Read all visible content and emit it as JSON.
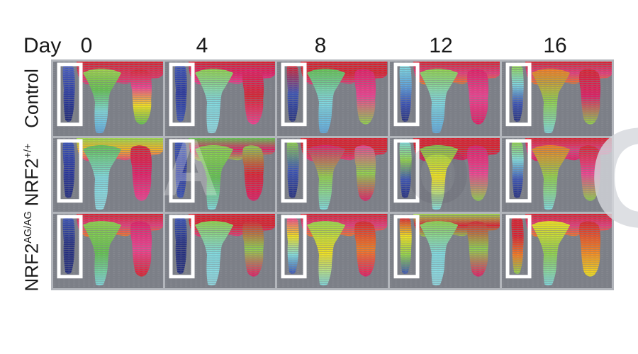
{
  "figure": {
    "type": "laser-doppler-perfusion-image-grid",
    "day_label": "Day",
    "days": [
      "0",
      "4",
      "8",
      "12",
      "16"
    ],
    "rows": [
      {
        "id": "control",
        "base": "Control",
        "sup": ""
      },
      {
        "id": "nrf2-wt",
        "base": "NRF2",
        "sup": "+/+"
      },
      {
        "id": "nrf2-agag",
        "base": "NRF2",
        "sup": "AG/AG"
      }
    ],
    "palette": {
      "panel_background": "#7c7f87",
      "grid_frame": "#b2b5bb",
      "box_outline": "#ffffff",
      "page_background": "#ffffff",
      "text": "#1a1a1a"
    },
    "panels": [
      {
        "row_id": "control",
        "row": "Control",
        "day": "0",
        "box_streak": [
          "#4a5fc0",
          "#2a3aa0",
          "#1b2575"
        ],
        "torso": [
          "#d8202e",
          "#e23a7a"
        ],
        "center_leg": [
          "#9fd04a",
          "#62c04f",
          "#7fd8dc",
          "#5fa8dc"
        ],
        "right_leg": [
          "#d8202e",
          "#ef3f8f",
          "#f0e01c",
          "#62c04f"
        ]
      },
      {
        "row_id": "control",
        "row": "Control",
        "day": "4",
        "box_streak": [
          "#3a52b4",
          "#27349b",
          "#3a52b4"
        ],
        "torso": [
          "#d8202e",
          "#e01a62",
          "#ef3f8f"
        ],
        "center_leg": [
          "#8fd04a",
          "#7fd8dc",
          "#8fd8e0"
        ],
        "right_leg": [
          "#e01a62",
          "#d8202e",
          "#ef3f8f"
        ]
      },
      {
        "row_id": "control",
        "row": "Control",
        "day": "8",
        "box_streak": [
          "#d8202e",
          "#3a52b4",
          "#232d7d"
        ],
        "torso": [
          "#d8202e",
          "#d8202e",
          "#e23a7a"
        ],
        "center_leg": [
          "#62c04f",
          "#7fd8dc",
          "#5fa8dc"
        ],
        "right_leg": [
          "#e01a62",
          "#ef3f8f",
          "#8fd04a"
        ]
      },
      {
        "row_id": "control",
        "row": "Control",
        "day": "12",
        "box_streak": [
          "#7fd8dc",
          "#5fa8dc",
          "#3a52b4",
          "#232d7d"
        ],
        "torso": [
          "#d8202e",
          "#e23a7a",
          "#f2791f"
        ],
        "center_leg": [
          "#8fd04a",
          "#7fd8dc",
          "#5fa8dc"
        ],
        "right_leg": [
          "#e01a62",
          "#ef3f8f",
          "#e01a62"
        ]
      },
      {
        "row_id": "control",
        "row": "Control",
        "day": "16",
        "box_streak": [
          "#8fd04a",
          "#7fd8dc",
          "#3a52b4",
          "#232d7d"
        ],
        "torso": [
          "#d8202e",
          "#e23a7a",
          "#f2791f"
        ],
        "center_leg": [
          "#f2791f",
          "#8fd04a",
          "#7fd8dc"
        ],
        "right_leg": [
          "#d8202e",
          "#e01a62",
          "#8fd04a"
        ]
      },
      {
        "row_id": "nrf2-wt",
        "row": "NRF2+/+",
        "day": "0",
        "box_streak": [
          "#3a52b4",
          "#27349b",
          "#232d7d"
        ],
        "torso": [
          "#9ad54a",
          "#f2b31f",
          "#e23a7a"
        ],
        "center_leg": [
          "#62c04f",
          "#7fd8dc",
          "#8fd8e0"
        ],
        "right_leg": [
          "#d8202e",
          "#e01a62",
          "#ef3f8f"
        ]
      },
      {
        "row_id": "nrf2-wt",
        "row": "NRF2+/+",
        "day": "4",
        "box_streak": [
          "#3a52b4",
          "#27349b",
          "#3a52b4"
        ],
        "torso": [
          "#62c04f",
          "#e01a62",
          "#8fd04a"
        ],
        "center_leg": [
          "#8fd04a",
          "#62c04f",
          "#7fd8dc"
        ],
        "right_leg": [
          "#8fd04a",
          "#d8202e",
          "#e01a62"
        ]
      },
      {
        "row_id": "nrf2-wt",
        "row": "NRF2+/+",
        "day": "8",
        "box_streak": [
          "#8fd04a",
          "#3a52b4",
          "#232d7d"
        ],
        "torso": [
          "#d8202e",
          "#d8202e",
          "#e23a7a"
        ],
        "center_leg": [
          "#e01a62",
          "#8fd04a",
          "#7fd8dc"
        ],
        "right_leg": [
          "#ef3f8f",
          "#8fd04a",
          "#e01a62"
        ]
      },
      {
        "row_id": "nrf2-wt",
        "row": "NRF2+/+",
        "day": "12",
        "box_streak": [
          "#7fd8dc",
          "#8fd04a",
          "#3a52b4",
          "#232d7d"
        ],
        "torso": [
          "#d8202e",
          "#d8202e",
          "#e01a62"
        ],
        "center_leg": [
          "#8fd04a",
          "#f0e01c",
          "#7fd8dc"
        ],
        "right_leg": [
          "#e01a62",
          "#ef3f8f",
          "#8fd04a"
        ]
      },
      {
        "row_id": "nrf2-wt",
        "row": "NRF2+/+",
        "day": "16",
        "box_streak": [
          "#8fd04a",
          "#7fd8dc",
          "#3a52b4",
          "#232d7d"
        ],
        "torso": [
          "#d8202e",
          "#e23a7a",
          "#e01a62"
        ],
        "center_leg": [
          "#f2791f",
          "#8fd04a",
          "#7fd8dc"
        ],
        "right_leg": [
          "#d8202e",
          "#ef3f8f",
          "#8fd04a"
        ]
      },
      {
        "row_id": "nrf2-agag",
        "row": "NRF2AG/AG",
        "day": "0",
        "box_streak": [
          "#3a52b4",
          "#232d7d",
          "#232d7d"
        ],
        "torso": [
          "#d8202e",
          "#e23a7a",
          "#f2791f"
        ],
        "center_leg": [
          "#8fd04a",
          "#62c04f",
          "#7fd8dc"
        ],
        "right_leg": [
          "#e01a62",
          "#ef3f8f",
          "#d8202e"
        ]
      },
      {
        "row_id": "nrf2-agag",
        "row": "NRF2AG/AG",
        "day": "4",
        "box_streak": [
          "#3a52b4",
          "#232d7d",
          "#232d7d"
        ],
        "torso": [
          "#d8202e",
          "#d8202e",
          "#e23a7a"
        ],
        "center_leg": [
          "#8fd04a",
          "#7fd8dc",
          "#8fd8e0"
        ],
        "right_leg": [
          "#d8202e",
          "#8fd04a",
          "#e01a62"
        ]
      },
      {
        "row_id": "nrf2-agag",
        "row": "NRF2AG/AG",
        "day": "8",
        "box_streak": [
          "#ef3f8f",
          "#f0e01c",
          "#7fd8dc",
          "#3a52b4"
        ],
        "torso": [
          "#d8202e",
          "#e23a7a",
          "#f2791f"
        ],
        "center_leg": [
          "#9ad54a",
          "#f0e01c",
          "#7fd8dc"
        ],
        "right_leg": [
          "#d8202e",
          "#f2791f",
          "#e01a62"
        ]
      },
      {
        "row_id": "nrf2-agag",
        "row": "NRF2AG/AG",
        "day": "12",
        "box_streak": [
          "#d8202e",
          "#f0e01c",
          "#8fd04a",
          "#3a52b4"
        ],
        "torso": [
          "#9ad54a",
          "#d8202e",
          "#8fd04a"
        ],
        "center_leg": [
          "#8fd04a",
          "#7fd8dc",
          "#8fd8e0"
        ],
        "right_leg": [
          "#d8202e",
          "#8fd04a",
          "#e01a62"
        ]
      },
      {
        "row_id": "nrf2-agag",
        "row": "NRF2AG/AG",
        "day": "16",
        "box_streak": [
          "#d8202e",
          "#d8202e",
          "#f2791f",
          "#8fd04a"
        ],
        "torso": [
          "#d8202e",
          "#e23a7a",
          "#f2791f"
        ],
        "center_leg": [
          "#f0e01c",
          "#8fd04a",
          "#7fd8dc"
        ],
        "right_leg": [
          "#d8202e",
          "#f2791f",
          "#f0e01c"
        ]
      }
    ]
  },
  "watermark": {
    "glyphs": [
      "A",
      "O",
      "C"
    ]
  }
}
